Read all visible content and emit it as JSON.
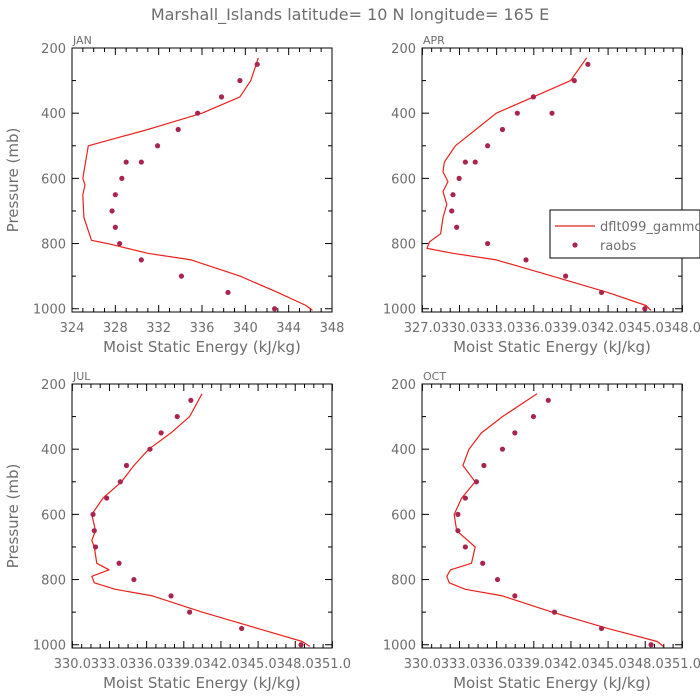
{
  "title": "Marshall_Islands  latitude= 10 N longitude= 165 E",
  "colors": {
    "model": "#e8221c",
    "obs": "#a8254e",
    "text": "#6e6e6e",
    "axis": "#000000"
  },
  "legend": {
    "model": "dflt099_gammc",
    "obs": "raobs",
    "placement": "upper-right"
  },
  "chart_data": [
    {
      "type": "line",
      "panel": "JAN",
      "xlabel": "Moist Static Energy (kJ/kg)",
      "ylabel": "Pressure (mb)",
      "xlim": [
        324,
        348
      ],
      "ylim": [
        1010,
        200
      ],
      "xticks": [
        324,
        328,
        332,
        336,
        340,
        344,
        348
      ],
      "xtick_labels": [
        "324",
        "328",
        "332",
        "336",
        "340",
        "344",
        "348"
      ],
      "yticks": [
        200,
        400,
        600,
        800,
        1000
      ],
      "yticks_minor": [
        300,
        500,
        700,
        900
      ],
      "grid": false,
      "series": [
        {
          "name": "dflt099_gammc",
          "kind": "line",
          "x": [
            346.2,
            345.6,
            343.0,
            339.5,
            335.0,
            331.0,
            327.3,
            325.8,
            325.1,
            325.0,
            325.2,
            325.0,
            325.5,
            331.0,
            336.0,
            339.5,
            340.5,
            341.2
          ],
          "y": [
            1005,
            990,
            950,
            900,
            850,
            830,
            800,
            790,
            720,
            650,
            620,
            600,
            500,
            450,
            400,
            350,
            300,
            230
          ]
        },
        {
          "name": "raobs",
          "kind": "scatter",
          "x": [
            342.7,
            338.4,
            334.1,
            330.4,
            328.4,
            328.0,
            327.7,
            328.0,
            328.6,
            329.0,
            330.4,
            331.9,
            333.8,
            335.6,
            337.8,
            339.5,
            341.1
          ],
          "y": [
            1000,
            950,
            900,
            850,
            800,
            750,
            700,
            650,
            600,
            550,
            550,
            500,
            450,
            400,
            350,
            300,
            250
          ]
        }
      ]
    },
    {
      "type": "line",
      "panel": "APR",
      "xlabel": "Moist Static Energy (kJ/kg)",
      "ylabel": "",
      "xlim": [
        327.0,
        348.0
      ],
      "ylim": [
        1010,
        200
      ],
      "xticks": [
        327.03,
        330.03,
        333.03,
        336.03,
        339.03,
        342.03,
        345.03,
        348.03
      ],
      "xtick_labels": [
        "327.0",
        "330.0",
        "333.0",
        "336.0",
        "339.0",
        "342.0",
        "345.0",
        "348.0"
      ],
      "yticks": [
        200,
        400,
        600,
        800,
        1000
      ],
      "yticks_minor": [
        300,
        500,
        700,
        900
      ],
      "grid": false,
      "series": [
        {
          "name": "dflt099_gammc",
          "kind": "line",
          "x": [
            345.5,
            345.1,
            342.0,
            337.5,
            333.0,
            329.5,
            327.4,
            327.6,
            328.5,
            328.7,
            329.0,
            328.7,
            329.1,
            328.7,
            328.8,
            329.7,
            333.0,
            336.0,
            339.0,
            340.3
          ],
          "y": [
            1005,
            990,
            950,
            900,
            850,
            830,
            815,
            795,
            770,
            720,
            680,
            640,
            610,
            580,
            550,
            500,
            400,
            350,
            300,
            230
          ]
        },
        {
          "name": "raobs",
          "kind": "scatter",
          "x": [
            345.0,
            341.5,
            338.6,
            335.4,
            332.3,
            329.8,
            329.4,
            329.5,
            330.0,
            330.5,
            331.3,
            332.3,
            333.5,
            334.7,
            336.0,
            337.5,
            339.3,
            340.4
          ],
          "y": [
            1000,
            950,
            900,
            850,
            800,
            750,
            700,
            650,
            600,
            550,
            550,
            500,
            450,
            400,
            350,
            400,
            300,
            250
          ]
        }
      ]
    },
    {
      "type": "line",
      "panel": "JUL",
      "xlabel": "Moist Static Energy (kJ/kg)",
      "ylabel": "Pressure (mb)",
      "xlim": [
        330.0,
        351.0
      ],
      "ylim": [
        1010,
        200
      ],
      "xticks": [
        330.03,
        333.03,
        336.03,
        339.03,
        342.03,
        345.03,
        348.03,
        351.03
      ],
      "xtick_labels": [
        "330.0",
        "333.0",
        "336.0",
        "339.0",
        "342.0",
        "345.0",
        "348.0",
        "351.0"
      ],
      "yticks": [
        200,
        400,
        600,
        800,
        1000
      ],
      "yticks_minor": [
        300,
        500,
        700,
        900
      ],
      "grid": false,
      "series": [
        {
          "name": "dflt099_gammc",
          "kind": "line",
          "x": [
            349.2,
            348.6,
            345.0,
            340.5,
            336.5,
            333.5,
            331.8,
            331.6,
            333.0,
            332.0,
            331.8,
            331.6,
            331.9,
            331.6,
            332.5,
            334.0,
            335.0,
            336.2,
            338.0,
            339.5,
            340.5
          ],
          "y": [
            1005,
            990,
            950,
            900,
            850,
            830,
            810,
            790,
            770,
            750,
            700,
            680,
            650,
            600,
            550,
            500,
            450,
            400,
            350,
            300,
            230
          ]
        },
        {
          "name": "raobs",
          "kind": "scatter",
          "x": [
            348.5,
            343.7,
            339.5,
            338.0,
            335.0,
            333.8,
            331.9,
            331.8,
            331.7,
            332.8,
            333.9,
            334.4,
            336.3,
            337.2,
            338.5,
            339.6
          ],
          "y": [
            1000,
            950,
            900,
            850,
            800,
            750,
            700,
            650,
            600,
            550,
            500,
            450,
            400,
            350,
            300,
            250
          ]
        }
      ]
    },
    {
      "type": "line",
      "panel": "OCT",
      "xlabel": "Moist Static Energy (kJ/kg)",
      "ylabel": "",
      "xlim": [
        330.0,
        351.0
      ],
      "ylim": [
        1010,
        200
      ],
      "xticks": [
        330.03,
        333.03,
        336.03,
        339.03,
        342.03,
        345.03,
        348.03,
        351.03
      ],
      "xtick_labels": [
        "330.0",
        "333.0",
        "336.0",
        "339.0",
        "342.0",
        "345.0",
        "348.0",
        "351.0"
      ],
      "yticks": [
        200,
        400,
        600,
        800,
        1000
      ],
      "yticks_minor": [
        300,
        500,
        700,
        900
      ],
      "grid": false,
      "series": [
        {
          "name": "dflt099_gammc",
          "kind": "line",
          "x": [
            349.5,
            349.0,
            345.0,
            340.5,
            336.5,
            333.5,
            332.2,
            332.0,
            332.3,
            334.0,
            334.3,
            332.8,
            332.6,
            333.2,
            334.3,
            333.3,
            333.8,
            334.8,
            336.5,
            338.5,
            339.3
          ],
          "y": [
            1005,
            990,
            950,
            900,
            850,
            830,
            810,
            790,
            770,
            750,
            700,
            650,
            600,
            550,
            500,
            450,
            400,
            350,
            300,
            250,
            230
          ]
        },
        {
          "name": "raobs",
          "kind": "scatter",
          "x": [
            348.5,
            344.5,
            340.7,
            337.5,
            336.1,
            334.9,
            333.5,
            332.9,
            332.9,
            333.5,
            334.4,
            335.0,
            336.5,
            337.5,
            339.0,
            340.2
          ],
          "y": [
            1000,
            950,
            900,
            850,
            800,
            750,
            700,
            650,
            600,
            550,
            500,
            450,
            400,
            350,
            300,
            250
          ]
        }
      ]
    }
  ]
}
